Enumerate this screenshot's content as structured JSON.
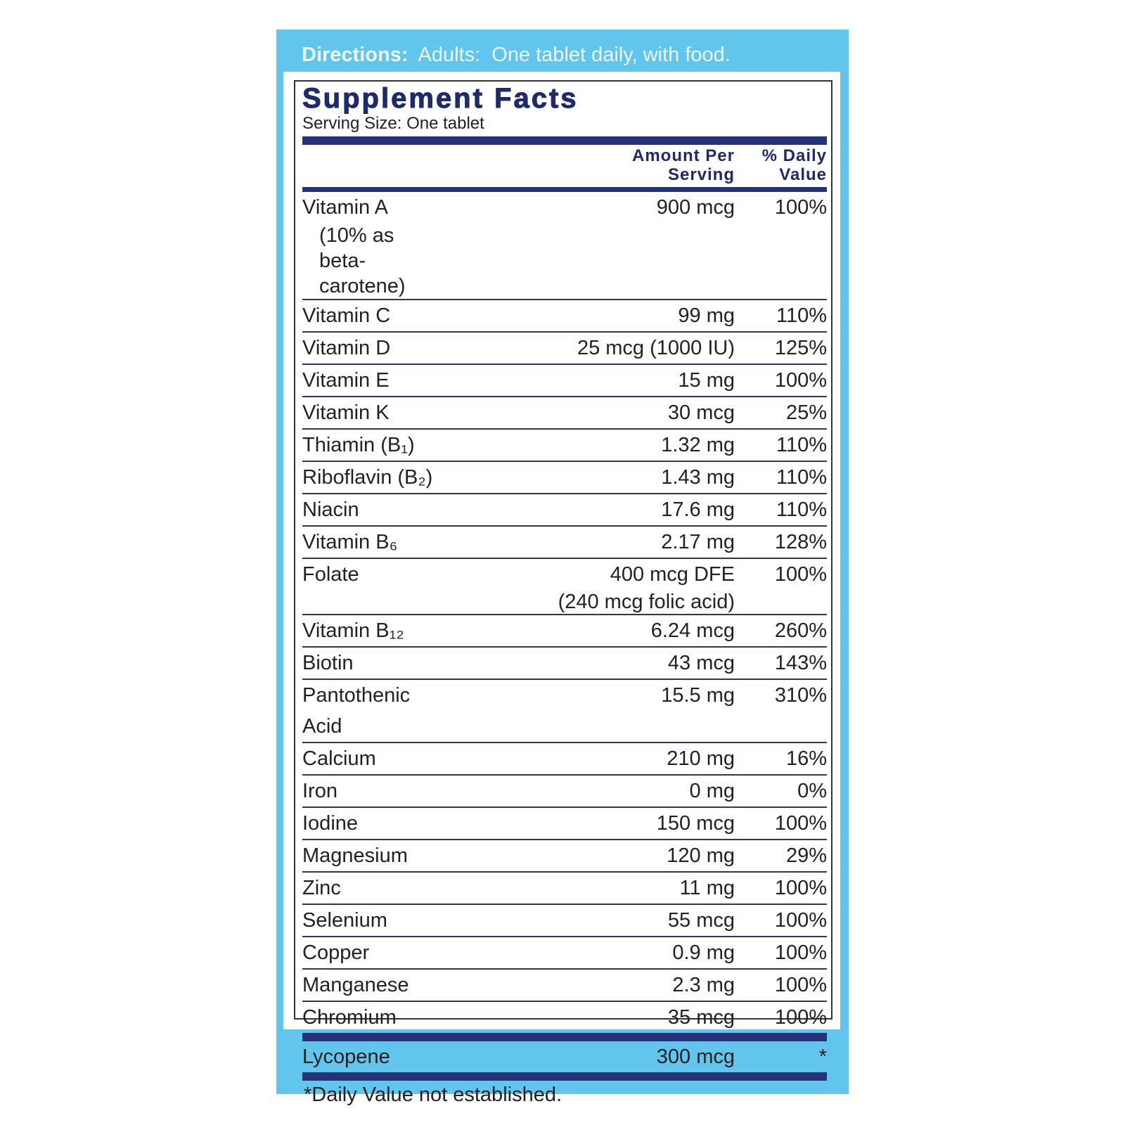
{
  "directions": {
    "label": "Directions:",
    "text": "Adults:  One tablet daily, with food."
  },
  "facts": {
    "title": "Supplement Facts",
    "serving_size": "Serving Size: One tablet",
    "header": {
      "amount": "Amount Per Serving",
      "dv": "% Daily Value"
    },
    "rows": [
      {
        "name": "Vitamin A",
        "note": "(10% as beta-carotene)",
        "amount": "900 mcg",
        "dv": "100%"
      },
      {
        "name": "Vitamin C",
        "amount": "99 mg",
        "dv": "110%"
      },
      {
        "name": "Vitamin D",
        "amount": "25 mcg (1000 IU)",
        "dv": "125%"
      },
      {
        "name": "Vitamin E",
        "amount": "15 mg",
        "dv": "100%"
      },
      {
        "name": "Vitamin K",
        "amount": "30 mcg",
        "dv": "25%"
      },
      {
        "name": "Thiamin (B₁)",
        "amount": "1.32 mg",
        "dv": "110%"
      },
      {
        "name": "Riboflavin (B₂)",
        "amount": "1.43 mg",
        "dv": "110%"
      },
      {
        "name": "Niacin",
        "amount": "17.6 mg",
        "dv": "110%"
      },
      {
        "name": "Vitamin B₆",
        "amount": "2.17 mg",
        "dv": "128%"
      },
      {
        "name": "Folate",
        "amount": "400 mcg DFE",
        "amount_note": "(240 mcg folic acid)",
        "dv": "100%"
      },
      {
        "name": "Vitamin B₁₂",
        "amount": "6.24 mcg",
        "dv": "260%"
      },
      {
        "name": "Biotin",
        "amount": "43 mcg",
        "dv": "143%"
      },
      {
        "name": "Pantothenic Acid",
        "amount": "15.5 mg",
        "dv": "310%"
      },
      {
        "name": "Calcium",
        "amount": "210 mg",
        "dv": "16%"
      },
      {
        "name": "Iron",
        "amount": "0 mg",
        "dv": "0%"
      },
      {
        "name": "Iodine",
        "amount": "150 mcg",
        "dv": "100%"
      },
      {
        "name": "Magnesium",
        "amount": "120 mg",
        "dv": "29%"
      },
      {
        "name": "Zinc",
        "amount": "11 mg",
        "dv": "100%"
      },
      {
        "name": "Selenium",
        "amount": "55 mcg",
        "dv": "100%"
      },
      {
        "name": "Copper",
        "amount": "0.9 mg",
        "dv": "100%"
      },
      {
        "name": "Manganese",
        "amount": "2.3 mg",
        "dv": "100%"
      },
      {
        "name": "Chromium",
        "amount": "35 mcg",
        "dv": "100%"
      }
    ],
    "other": {
      "name": "Lycopene",
      "amount": "300 mcg",
      "dv": "*"
    },
    "footnote": "*Daily Value not established."
  }
}
